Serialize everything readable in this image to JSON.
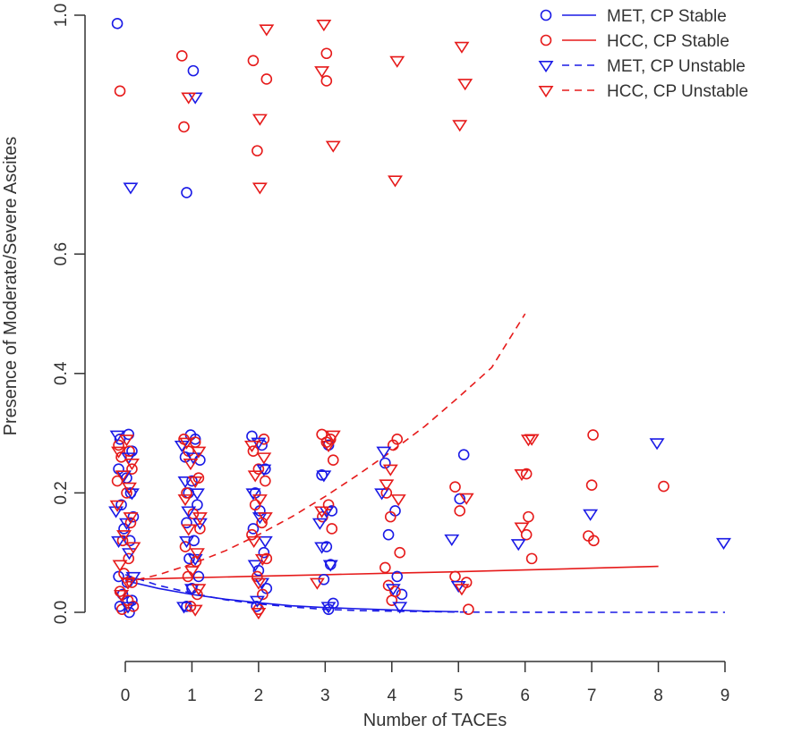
{
  "chart_data": {
    "type": "scatter",
    "title": "",
    "xlabel": "Number of TACEs",
    "ylabel": "Presence of Moderate/Severe Ascites",
    "xlim": [
      0,
      9
    ],
    "ylim": [
      0,
      1
    ],
    "x_ticks": [
      0,
      1,
      2,
      3,
      4,
      5,
      6,
      7,
      8,
      9
    ],
    "y_ticks": [
      0.0,
      0.2,
      0.4,
      0.6,
      1.0
    ],
    "y_tick_labels": [
      "0.0",
      "0.2",
      "0.4",
      "0.6",
      "1.0"
    ],
    "legend_position": "top-right",
    "colors": {
      "MET": "#1a1ae6",
      "HCC": "#e61a1a",
      "axis": "#333333"
    },
    "legend": [
      {
        "label": "MET, CP Stable",
        "color": "#1a1ae6",
        "marker": "circle",
        "line": "solid"
      },
      {
        "label": "HCC, CP Stable",
        "color": "#e61a1a",
        "marker": "circle",
        "line": "solid"
      },
      {
        "label": "MET, CP Unstable",
        "color": "#1a1ae6",
        "marker": "triangle-down",
        "line": "dashed"
      },
      {
        "label": "HCC, CP Unstable",
        "color": "#e61a1a",
        "marker": "triangle-down",
        "line": "dashed"
      }
    ],
    "series": [
      {
        "name": "MET, CP Stable",
        "color": "#1a1ae6",
        "marker": "circle",
        "points": [
          [
            -0.12,
            0.986
          ],
          [
            1.02,
            0.907
          ],
          [
            0.92,
            0.703
          ],
          [
            0.05,
            0.298
          ],
          [
            -0.08,
            0.29
          ],
          [
            0.1,
            0.27
          ],
          [
            -0.1,
            0.24
          ],
          [
            0.02,
            0.225
          ],
          [
            0.08,
            0.2
          ],
          [
            -0.06,
            0.18
          ],
          [
            0.12,
            0.16
          ],
          [
            -0.02,
            0.14
          ],
          [
            0.07,
            0.12
          ],
          [
            -0.1,
            0.06
          ],
          [
            0.03,
            0.05
          ],
          [
            -0.04,
            0.03
          ],
          [
            0.1,
            0.02
          ],
          [
            -0.08,
            0.01
          ],
          [
            0.06,
            0.0
          ],
          [
            0.98,
            0.297
          ],
          [
            1.05,
            0.29
          ],
          [
            0.9,
            0.26
          ],
          [
            1.12,
            0.255
          ],
          [
            1.0,
            0.22
          ],
          [
            0.95,
            0.2
          ],
          [
            1.08,
            0.18
          ],
          [
            0.92,
            0.15
          ],
          [
            1.03,
            0.12
          ],
          [
            0.96,
            0.09
          ],
          [
            1.1,
            0.06
          ],
          [
            1.0,
            0.04
          ],
          [
            0.92,
            0.01
          ],
          [
            1.9,
            0.295
          ],
          [
            2.05,
            0.28
          ],
          [
            2.1,
            0.24
          ],
          [
            1.95,
            0.2
          ],
          [
            2.02,
            0.17
          ],
          [
            1.92,
            0.14
          ],
          [
            2.08,
            0.1
          ],
          [
            2.0,
            0.07
          ],
          [
            2.12,
            0.04
          ],
          [
            1.97,
            0.01
          ],
          [
            3.05,
            0.28
          ],
          [
            2.95,
            0.23
          ],
          [
            3.1,
            0.17
          ],
          [
            3.02,
            0.11
          ],
          [
            3.08,
            0.08
          ],
          [
            2.98,
            0.055
          ],
          [
            3.12,
            0.015
          ],
          [
            3.05,
            0.005
          ],
          [
            3.9,
            0.25
          ],
          [
            4.05,
            0.17
          ],
          [
            3.95,
            0.13
          ],
          [
            4.08,
            0.06
          ],
          [
            4.15,
            0.03
          ],
          [
            5.08,
            0.264
          ],
          [
            5.02,
            0.19
          ]
        ]
      },
      {
        "name": "HCC, CP Stable",
        "color": "#e61a1a",
        "marker": "circle",
        "points": [
          [
            -0.08,
            0.873
          ],
          [
            0.85,
            0.932
          ],
          [
            0.88,
            0.813
          ],
          [
            1.92,
            0.924
          ],
          [
            2.12,
            0.893
          ],
          [
            1.98,
            0.773
          ],
          [
            3.02,
            0.936
          ],
          [
            3.02,
            0.89
          ],
          [
            -0.1,
            0.28
          ],
          [
            0.06,
            0.27
          ],
          [
            -0.06,
            0.26
          ],
          [
            0.1,
            0.24
          ],
          [
            -0.12,
            0.22
          ],
          [
            0.02,
            0.2
          ],
          [
            0.08,
            0.15
          ],
          [
            -0.04,
            0.12
          ],
          [
            0.05,
            0.09
          ],
          [
            -0.02,
            0.065
          ],
          [
            0.1,
            0.05
          ],
          [
            -0.08,
            0.035
          ],
          [
            0.04,
            0.02
          ],
          [
            0.12,
            0.01
          ],
          [
            -0.05,
            0.005
          ],
          [
            0.88,
            0.29
          ],
          [
            1.05,
            0.285
          ],
          [
            0.95,
            0.27
          ],
          [
            1.1,
            0.225
          ],
          [
            0.92,
            0.2
          ],
          [
            1.02,
            0.165
          ],
          [
            1.12,
            0.14
          ],
          [
            0.9,
            0.11
          ],
          [
            1.06,
            0.085
          ],
          [
            0.94,
            0.06
          ],
          [
            1.08,
            0.03
          ],
          [
            0.98,
            0.01
          ],
          [
            2.08,
            0.29
          ],
          [
            1.92,
            0.27
          ],
          [
            2.0,
            0.24
          ],
          [
            2.1,
            0.22
          ],
          [
            1.95,
            0.18
          ],
          [
            2.05,
            0.15
          ],
          [
            1.9,
            0.13
          ],
          [
            2.12,
            0.09
          ],
          [
            1.98,
            0.06
          ],
          [
            2.06,
            0.03
          ],
          [
            2.0,
            0.005
          ],
          [
            2.95,
            0.298
          ],
          [
            3.08,
            0.29
          ],
          [
            3.02,
            0.285
          ],
          [
            3.12,
            0.255
          ],
          [
            3.05,
            0.18
          ],
          [
            2.96,
            0.16
          ],
          [
            3.1,
            0.14
          ],
          [
            4.08,
            0.29
          ],
          [
            4.02,
            0.28
          ],
          [
            3.92,
            0.2
          ],
          [
            3.98,
            0.16
          ],
          [
            4.12,
            0.1
          ],
          [
            3.9,
            0.075
          ],
          [
            3.95,
            0.045
          ],
          [
            4.05,
            0.035
          ],
          [
            4.0,
            0.02
          ],
          [
            4.95,
            0.21
          ],
          [
            5.02,
            0.17
          ],
          [
            4.95,
            0.06
          ],
          [
            5.12,
            0.05
          ],
          [
            5.15,
            0.005
          ],
          [
            6.02,
            0.232
          ],
          [
            6.05,
            0.16
          ],
          [
            6.02,
            0.13
          ],
          [
            6.1,
            0.09
          ],
          [
            7.02,
            0.297
          ],
          [
            7.0,
            0.213
          ],
          [
            6.95,
            0.128
          ],
          [
            7.03,
            0.12
          ],
          [
            8.08,
            0.211
          ]
        ]
      },
      {
        "name": "MET, CP Unstable",
        "color": "#1a1ae6",
        "marker": "triangle-down",
        "points": [
          [
            0.08,
            0.712
          ],
          [
            1.05,
            0.863
          ],
          [
            -0.12,
            0.297
          ],
          [
            0.05,
            0.26
          ],
          [
            -0.02,
            0.23
          ],
          [
            0.1,
            0.2
          ],
          [
            -0.14,
            0.17
          ],
          [
            0.02,
            0.15
          ],
          [
            -0.1,
            0.12
          ],
          [
            0.06,
            0.1
          ],
          [
            0.12,
            0.06
          ],
          [
            -0.06,
            0.03
          ],
          [
            0.04,
            0.01
          ],
          [
            0.85,
            0.28
          ],
          [
            1.02,
            0.26
          ],
          [
            0.9,
            0.22
          ],
          [
            1.08,
            0.2
          ],
          [
            0.95,
            0.17
          ],
          [
            1.12,
            0.15
          ],
          [
            0.92,
            0.12
          ],
          [
            1.05,
            0.09
          ],
          [
            1.0,
            0.04
          ],
          [
            0.88,
            0.01
          ],
          [
            2.0,
            0.285
          ],
          [
            2.08,
            0.24
          ],
          [
            1.92,
            0.2
          ],
          [
            2.02,
            0.16
          ],
          [
            2.1,
            0.12
          ],
          [
            1.95,
            0.08
          ],
          [
            2.05,
            0.05
          ],
          [
            1.98,
            0.02
          ],
          [
            2.98,
            0.23
          ],
          [
            3.02,
            0.17
          ],
          [
            2.92,
            0.15
          ],
          [
            2.95,
            0.11
          ],
          [
            3.08,
            0.08
          ],
          [
            3.05,
            0.01
          ],
          [
            3.88,
            0.27
          ],
          [
            3.85,
            0.2
          ],
          [
            4.02,
            0.04
          ],
          [
            4.12,
            0.01
          ],
          [
            4.9,
            0.123
          ],
          [
            5.0,
            0.045
          ],
          [
            5.9,
            0.115
          ],
          [
            6.98,
            0.165
          ],
          [
            7.98,
            0.284
          ],
          [
            8.98,
            0.117
          ]
        ]
      },
      {
        "name": "HCC, CP Unstable",
        "color": "#e61a1a",
        "marker": "triangle-down",
        "points": [
          [
            2.12,
            0.977
          ],
          [
            2.98,
            0.985
          ],
          [
            4.08,
            0.924
          ],
          [
            5.05,
            0.948
          ],
          [
            5.1,
            0.886
          ],
          [
            2.95,
            0.907
          ],
          [
            0.95,
            0.863
          ],
          [
            2.02,
            0.827
          ],
          [
            5.02,
            0.817
          ],
          [
            3.12,
            0.782
          ],
          [
            4.05,
            0.724
          ],
          [
            2.02,
            0.712
          ],
          [
            0.02,
            0.29
          ],
          [
            -0.1,
            0.27
          ],
          [
            0.1,
            0.25
          ],
          [
            -0.04,
            0.23
          ],
          [
            0.06,
            0.21
          ],
          [
            -0.12,
            0.18
          ],
          [
            0.08,
            0.16
          ],
          [
            -0.02,
            0.13
          ],
          [
            0.12,
            0.11
          ],
          [
            -0.08,
            0.08
          ],
          [
            0.04,
            0.05
          ],
          [
            -0.06,
            0.03
          ],
          [
            0.92,
            0.285
          ],
          [
            1.1,
            0.27
          ],
          [
            0.98,
            0.25
          ],
          [
            1.05,
            0.22
          ],
          [
            0.9,
            0.19
          ],
          [
            1.12,
            0.16
          ],
          [
            0.95,
            0.14
          ],
          [
            1.08,
            0.1
          ],
          [
            1.0,
            0.07
          ],
          [
            1.1,
            0.04
          ],
          [
            1.05,
            0.005
          ],
          [
            1.9,
            0.28
          ],
          [
            2.08,
            0.26
          ],
          [
            1.95,
            0.23
          ],
          [
            2.02,
            0.19
          ],
          [
            2.1,
            0.16
          ],
          [
            1.93,
            0.12
          ],
          [
            2.06,
            0.09
          ],
          [
            2.0,
            0.05
          ],
          [
            2.0,
            0.0
          ],
          [
            3.12,
            0.297
          ],
          [
            3.05,
            0.28
          ],
          [
            2.95,
            0.17
          ],
          [
            2.88,
            0.05
          ],
          [
            3.92,
            0.215
          ],
          [
            3.98,
            0.24
          ],
          [
            4.1,
            0.19
          ],
          [
            5.12,
            0.192
          ],
          [
            5.05,
            0.04
          ],
          [
            6.1,
            0.291
          ],
          [
            6.05,
            0.29
          ],
          [
            5.95,
            0.232
          ],
          [
            5.95,
            0.143
          ]
        ]
      }
    ],
    "fitted_curves": [
      {
        "name": "MET, CP Stable",
        "color": "#1a1ae6",
        "style": "solid",
        "x": [
          0,
          0.5,
          1,
          1.5,
          2,
          2.5,
          3,
          3.5,
          4,
          4.5,
          5
        ],
        "y": [
          0.053,
          0.04,
          0.03,
          0.022,
          0.016,
          0.011,
          0.008,
          0.006,
          0.004,
          0.002,
          0.001
        ]
      },
      {
        "name": "HCC, CP Stable",
        "color": "#e61a1a",
        "style": "solid",
        "x": [
          0,
          1,
          2,
          3,
          4,
          5,
          6,
          7,
          8
        ],
        "y": [
          0.055,
          0.058,
          0.0605,
          0.063,
          0.0655,
          0.068,
          0.071,
          0.074,
          0.077
        ]
      },
      {
        "name": "MET, CP Unstable",
        "color": "#1a1ae6",
        "style": "dashed",
        "x": [
          0,
          0.5,
          1,
          1.5,
          2,
          2.5,
          3,
          3.5,
          4,
          5,
          6,
          7,
          8,
          9
        ],
        "y": [
          0.063,
          0.045,
          0.032,
          0.021,
          0.014,
          0.009,
          0.005,
          0.003,
          0.002,
          0.0005,
          0.0002,
          0.0,
          0.0,
          0.0
        ]
      },
      {
        "name": "HCC, CP Unstable",
        "color": "#e61a1a",
        "style": "dashed",
        "x": [
          0,
          0.5,
          1,
          1.5,
          2,
          2.5,
          3,
          3.5,
          4,
          4.5,
          5,
          5.5,
          6
        ],
        "y": [
          0.05,
          0.063,
          0.081,
          0.103,
          0.13,
          0.16,
          0.194,
          0.231,
          0.27,
          0.312,
          0.36,
          0.41,
          0.5
        ]
      }
    ]
  }
}
